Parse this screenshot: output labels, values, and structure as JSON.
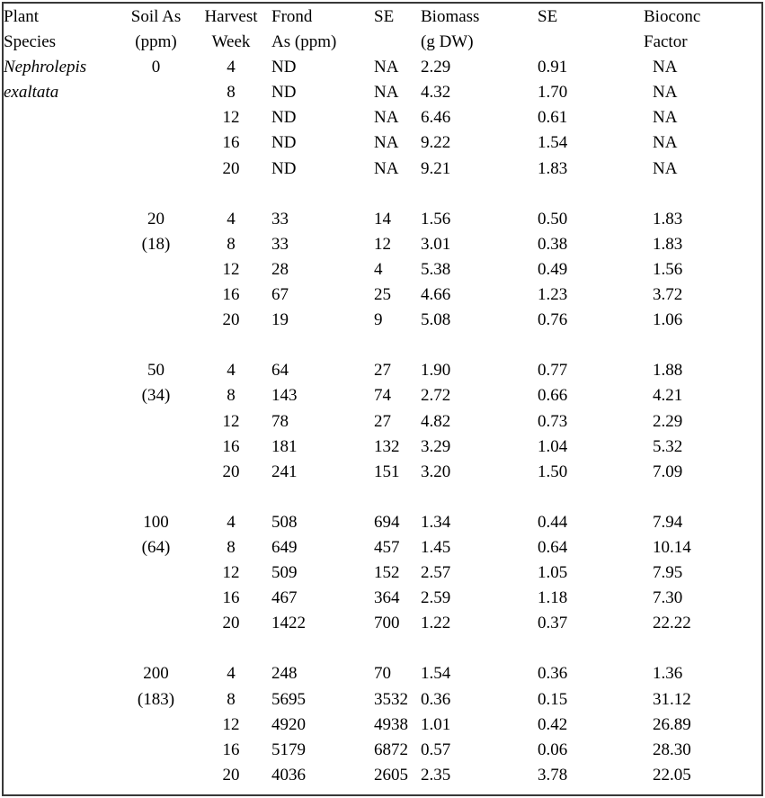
{
  "page": {
    "background_color": "#ffffff",
    "border_color": "#383838",
    "text_color": "#000000"
  },
  "table": {
    "columns": [
      {
        "id": "plant_species",
        "line1": "Plant",
        "line2": "Species"
      },
      {
        "id": "soil_as",
        "line1": "Soil As",
        "line2": "(ppm)"
      },
      {
        "id": "harvest_week",
        "line1": "Harvest",
        "line2": "Week"
      },
      {
        "id": "frond_as",
        "line1": "Frond",
        "line2": "As (ppm)"
      },
      {
        "id": "se_frond",
        "line1": "SE",
        "line2": ""
      },
      {
        "id": "biomass",
        "line1": "Biomass",
        "line2": "(g DW)"
      },
      {
        "id": "se_biomass",
        "line1": "SE",
        "line2": ""
      },
      {
        "id": "bioconc",
        "line1": "Bioconc",
        "line2": "Factor"
      }
    ],
    "species_lines": [
      "Nephrolepis",
      "exaltata"
    ],
    "groups": [
      {
        "soil_ppm": "0",
        "soil_actual": "",
        "rows": [
          {
            "week": "4",
            "frond_as": "ND",
            "se_frond": "NA",
            "biomass": "2.29",
            "se_biomass": "0.91",
            "bioconc": "NA"
          },
          {
            "week": "8",
            "frond_as": "ND",
            "se_frond": "NA",
            "biomass": "4.32",
            "se_biomass": "1.70",
            "bioconc": "NA"
          },
          {
            "week": "12",
            "frond_as": "ND",
            "se_frond": "NA",
            "biomass": "6.46",
            "se_biomass": "0.61",
            "bioconc": "NA"
          },
          {
            "week": "16",
            "frond_as": "ND",
            "se_frond": "NA",
            "biomass": "9.22",
            "se_biomass": "1.54",
            "bioconc": "NA"
          },
          {
            "week": "20",
            "frond_as": "ND",
            "se_frond": "NA",
            "biomass": "9.21",
            "se_biomass": "1.83",
            "bioconc": "NA"
          }
        ]
      },
      {
        "soil_ppm": "20",
        "soil_actual": "(18)",
        "rows": [
          {
            "week": "4",
            "frond_as": "33",
            "se_frond": "14",
            "biomass": "1.56",
            "se_biomass": "0.50",
            "bioconc": "1.83"
          },
          {
            "week": "8",
            "frond_as": "33",
            "se_frond": "12",
            "biomass": "3.01",
            "se_biomass": "0.38",
            "bioconc": "1.83"
          },
          {
            "week": "12",
            "frond_as": "28",
            "se_frond": "4",
            "biomass": "5.38",
            "se_biomass": "0.49",
            "bioconc": "1.56"
          },
          {
            "week": "16",
            "frond_as": "67",
            "se_frond": "25",
            "biomass": "4.66",
            "se_biomass": "1.23",
            "bioconc": "3.72"
          },
          {
            "week": "20",
            "frond_as": "19",
            "se_frond": "9",
            "biomass": "5.08",
            "se_biomass": "0.76",
            "bioconc": "1.06"
          }
        ]
      },
      {
        "soil_ppm": "50",
        "soil_actual": "(34)",
        "rows": [
          {
            "week": "4",
            "frond_as": "64",
            "se_frond": "27",
            "biomass": "1.90",
            "se_biomass": "0.77",
            "bioconc": "1.88"
          },
          {
            "week": "8",
            "frond_as": "143",
            "se_frond": "74",
            "biomass": "2.72",
            "se_biomass": "0.66",
            "bioconc": "4.21"
          },
          {
            "week": "12",
            "frond_as": "78",
            "se_frond": "27",
            "biomass": "4.82",
            "se_biomass": "0.73",
            "bioconc": "2.29"
          },
          {
            "week": "16",
            "frond_as": "181",
            "se_frond": "132",
            "biomass": "3.29",
            "se_biomass": "1.04",
            "bioconc": "5.32"
          },
          {
            "week": "20",
            "frond_as": "241",
            "se_frond": "151",
            "biomass": "3.20",
            "se_biomass": "1.50",
            "bioconc": "7.09"
          }
        ]
      },
      {
        "soil_ppm": "100",
        "soil_actual": "(64)",
        "rows": [
          {
            "week": "4",
            "frond_as": "508",
            "se_frond": "694",
            "biomass": "1.34",
            "se_biomass": "0.44",
            "bioconc": "7.94"
          },
          {
            "week": "8",
            "frond_as": "649",
            "se_frond": "457",
            "biomass": "1.45",
            "se_biomass": "0.64",
            "bioconc": "10.14"
          },
          {
            "week": "12",
            "frond_as": "509",
            "se_frond": "152",
            "biomass": "2.57",
            "se_biomass": "1.05",
            "bioconc": "7.95"
          },
          {
            "week": "16",
            "frond_as": "467",
            "se_frond": "364",
            "biomass": "2.59",
            "se_biomass": "1.18",
            "bioconc": "7.30"
          },
          {
            "week": "20",
            "frond_as": "1422",
            "se_frond": "700",
            "biomass": "1.22",
            "se_biomass": "0.37",
            "bioconc": "22.22"
          }
        ]
      },
      {
        "soil_ppm": "200",
        "soil_actual": "(183)",
        "rows": [
          {
            "week": "4",
            "frond_as": "248",
            "se_frond": "70",
            "biomass": "1.54",
            "se_biomass": "0.36",
            "bioconc": "1.36"
          },
          {
            "week": "8",
            "frond_as": "5695",
            "se_frond": "3532",
            "biomass": "0.36",
            "se_biomass": "0.15",
            "bioconc": "31.12"
          },
          {
            "week": "12",
            "frond_as": "4920",
            "se_frond": "4938",
            "biomass": "1.01",
            "se_biomass": "0.42",
            "bioconc": "26.89"
          },
          {
            "week": "16",
            "frond_as": "5179",
            "se_frond": "6872",
            "biomass": "0.57",
            "se_biomass": "0.06",
            "bioconc": "28.30"
          },
          {
            "week": "20",
            "frond_as": "4036",
            "se_frond": "2605",
            "biomass": "2.35",
            "se_biomass": "3.78",
            "bioconc": "22.05"
          }
        ]
      }
    ]
  }
}
